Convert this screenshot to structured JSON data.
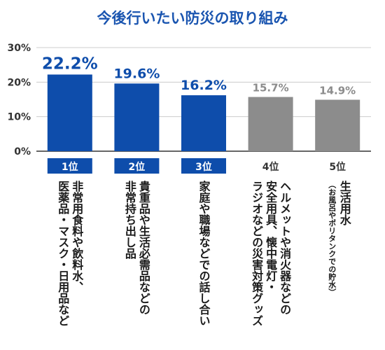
{
  "colors": {
    "highlight": "#0e4dab",
    "muted": "#8c8c8c",
    "title": "#1a55b0",
    "grid": "#cccccc",
    "axis": "#333333",
    "rank_text_highlight": "#ffffff",
    "rank_text_muted": "#333333"
  },
  "chart_data": {
    "type": "bar",
    "title": "今後行いたい防災の取り組み",
    "xlabel": "",
    "ylabel": "",
    "ylim": [
      0,
      30
    ],
    "yticks": [
      "0%",
      "10%",
      "20%",
      "30%"
    ],
    "grid": true,
    "categories": [
      {
        "rank": "1位",
        "lines": [
          "非常用食料や飲料水、",
          "医薬品・マスク・日用品など"
        ],
        "value": 22.2,
        "value_label": "22.2%",
        "highlight": true
      },
      {
        "rank": "2位",
        "lines": [
          "貴重品や生活必需品などの",
          "非常持ち出し品"
        ],
        "value": 19.6,
        "value_label": "19.6%",
        "highlight": true
      },
      {
        "rank": "3位",
        "lines": [
          "家庭や職場などでの話し合い"
        ],
        "value": 16.2,
        "value_label": "16.2%",
        "highlight": true
      },
      {
        "rank": "4位",
        "lines": [
          "ヘルメットや消火器などの",
          "安全用具、懐中電灯・",
          "ラジオなどの災害対策グッズ"
        ],
        "value": 15.7,
        "value_label": "15.7%",
        "highlight": false
      },
      {
        "rank": "5位",
        "lines": [
          "生活用水"
        ],
        "note": "（お風呂やポリタンクでの貯水）",
        "value": 14.9,
        "value_label": "14.9%",
        "highlight": false
      }
    ]
  }
}
